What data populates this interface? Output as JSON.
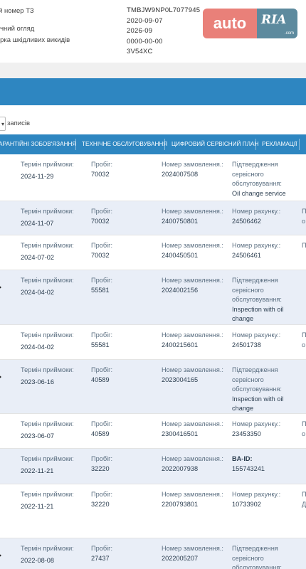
{
  "vehicle": {
    "labels": [
      "й номер ТЗ",
      "ічний огляд",
      "ірка шкідливих викидів"
    ],
    "values": [
      "TMBJW9NP0L7077945",
      "2020-09-07",
      "2026-09",
      "0000-00-00",
      "3V54XC"
    ]
  },
  "logo": {
    "auto": "auto",
    "ria": "RIA",
    "domain": ".com"
  },
  "entries": {
    "select_value": "",
    "label": "записів"
  },
  "tabs": [
    "АРАНТІЙНІ ЗОБОВ'ЯЗАННЯ",
    "ТЕХНІЧНЕ ОБСЛУГОВУВАННЯ",
    "ЦИФРОВИЙ СЕРВІСНИЙ ПЛАН",
    "РЕКЛАМАЦІЇ"
  ],
  "rows": [
    {
      "date_label": "Термін приймоки:",
      "date": "2024-11-29",
      "mileage_label": "Пробіг:",
      "mileage": "70032",
      "order_label": "Номер замовлення.:",
      "order": "2024007508",
      "c4_label": "Підтвердження сервісного обслуговування:",
      "c4_value": "Oil change service",
      "c5": ""
    },
    {
      "date_label": "Термін приймоки:",
      "date": "2024-11-07",
      "mileage_label": "Пробіг:",
      "mileage": "70032",
      "order_label": "Номер замовлення.:",
      "order": "2400750801",
      "c4_label": "Номер рахунку.:",
      "c4_value": "24506462",
      "c5": "П Т о"
    },
    {
      "date_label": "Термін приймоки:",
      "date": "2024-07-02",
      "mileage_label": "Пробіг:",
      "mileage": "70032",
      "order_label": "Номер замовлення.:",
      "order": "2400450501",
      "c4_label": "Номер рахунку.:",
      "c4_value": "24506461",
      "c5": "П Т"
    },
    {
      "date_label": "Термін приймоки:",
      "date": "2024-04-02",
      "mileage_label": "Пробіг:",
      "mileage": "55581",
      "order_label": "Номер замовлення.:",
      "order": "2024002156",
      "c4_label": "Підтвердження сервісного обслуговування:",
      "c4_value": "Inspection with oil change",
      "c5": ""
    },
    {
      "date_label": "Термін приймоки:",
      "date": "2024-04-02",
      "mileage_label": "Пробіг:",
      "mileage": "55581",
      "order_label": "Номер замовлення.:",
      "order": "2400215601",
      "c4_label": "Номер рахунку.:",
      "c4_value": "24501738",
      "c5": "П Т о"
    },
    {
      "date_label": "Термін приймоки:",
      "date": "2023-06-16",
      "mileage_label": "Пробіг:",
      "mileage": "40589",
      "order_label": "Номер замовлення.:",
      "order": "2023004165",
      "c4_label": "Підтвердження сервісного обслуговування:",
      "c4_value": "Inspection with oil change",
      "c5": ""
    },
    {
      "date_label": "Термін приймоки:",
      "date": "2023-06-07",
      "mileage_label": "Пробіг:",
      "mileage": "40589",
      "order_label": "Номер замовлення.:",
      "order": "2300416501",
      "c4_label": "Номер рахунку.:",
      "c4_value": "23453350",
      "c5": "П Т о"
    },
    {
      "date_label": "Термін приймоки:",
      "date": "2022-11-21",
      "mileage_label": "Пробіг:",
      "mileage": "32220",
      "order_label": "Номер замовлення.:",
      "order": "2022007938",
      "c4_label": "BA-ID:",
      "c4_value": "155743241",
      "c5": ""
    },
    {
      "date_label": "Термін приймоки:",
      "date": "2022-11-21",
      "mileage_label": "Пробіг:",
      "mileage": "32220",
      "order_label": "Номер замовлення.:",
      "order": "2200793801",
      "c4_label": "Номер рахунку.:",
      "c4_value": "10733902",
      "c5": "П Т Д З"
    },
    {
      "date_label": "Термін приймоки:",
      "date": "2022-08-08",
      "mileage_label": "Пробіг:",
      "mileage": "27437",
      "order_label": "Номер замовлення.:",
      "order": "2022005207",
      "c4_label": "Підтвердження сервісного обслуговування:",
      "c4_value": "",
      "c5": ""
    }
  ]
}
